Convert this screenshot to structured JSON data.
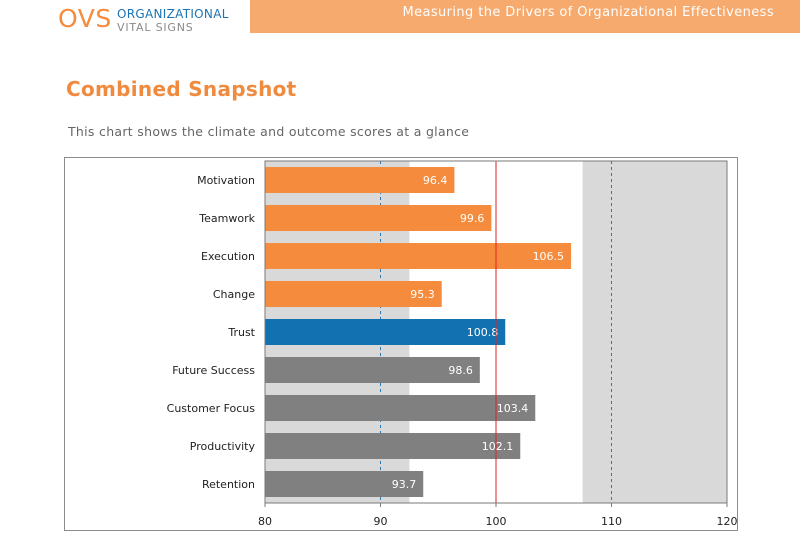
{
  "header": {
    "logo_mark": "OVS",
    "logo_line1": "ORGANIZATIONAL",
    "logo_line2": "VITAL SIGNS",
    "banner_text": "Measuring the Drivers of Organizational Effectiveness"
  },
  "page": {
    "title": "Combined Snapshot",
    "subtitle": "This chart shows the climate and outcome scores at a glance"
  },
  "colors": {
    "orange": "#f58b3c",
    "blue": "#1272b1",
    "gray": "#808080",
    "band": "#d9d9d9",
    "reference_line": "#e02020",
    "dashed_line": "#2a7ab8"
  },
  "chart_data": {
    "type": "bar",
    "orientation": "horizontal",
    "title": "",
    "xlabel": "",
    "ylabel": "",
    "xlim": [
      80,
      120
    ],
    "xticks": [
      80,
      90,
      100,
      110,
      120
    ],
    "grid": false,
    "reference_line": 100,
    "dashed_lines": [
      90,
      110
    ],
    "shaded_bands": [
      [
        80,
        92.5
      ],
      [
        107.5,
        120
      ]
    ],
    "categories": [
      "Motivation",
      "Teamwork",
      "Execution",
      "Change",
      "Trust",
      "Future Success",
      "Customer Focus",
      "Productivity",
      "Retention"
    ],
    "values": [
      96.4,
      99.6,
      106.5,
      95.3,
      100.8,
      98.6,
      103.4,
      102.1,
      93.7
    ],
    "bar_colors": [
      "orange",
      "orange",
      "orange",
      "orange",
      "blue",
      "gray",
      "gray",
      "gray",
      "gray"
    ]
  }
}
